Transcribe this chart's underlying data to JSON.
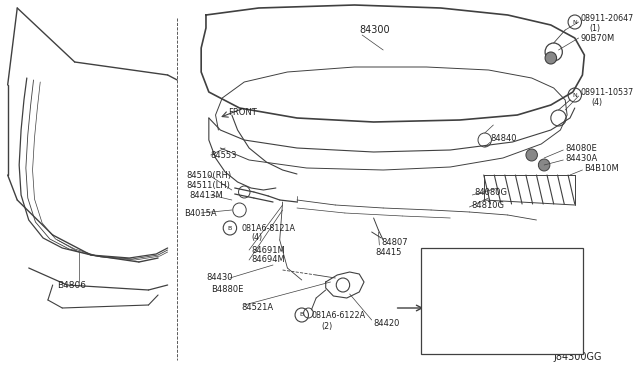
{
  "bg_color": "#ffffff",
  "line_color": "#404040",
  "text_color": "#222222",
  "diagram_code": "J84300GG",
  "figw": 6.4,
  "figh": 3.72,
  "dpi": 100,
  "xlim": [
    0,
    640
  ],
  "ylim": [
    0,
    372
  ]
}
